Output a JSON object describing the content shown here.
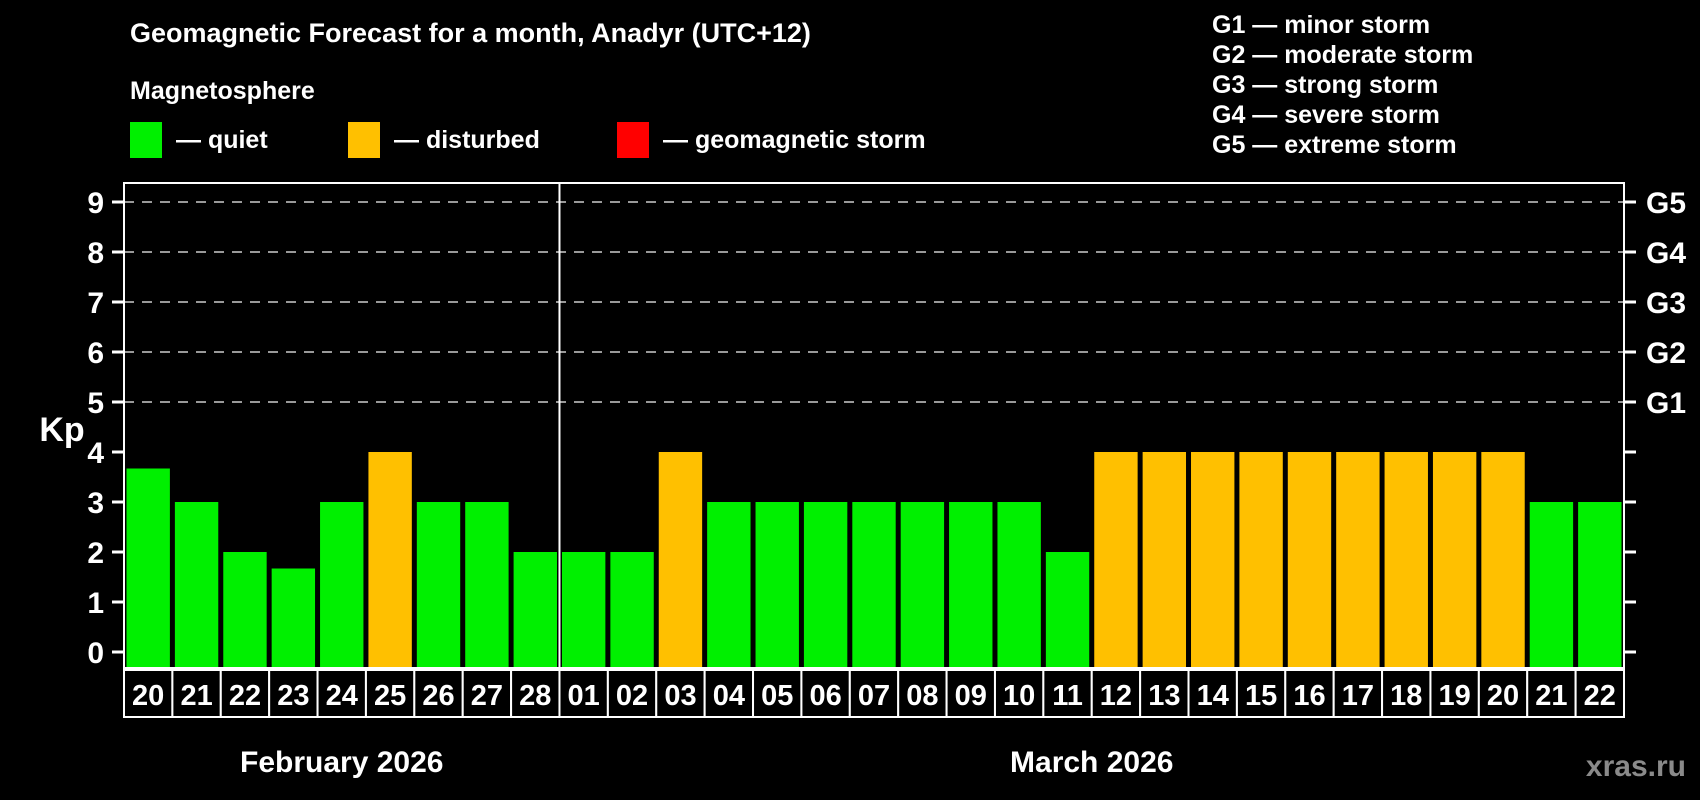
{
  "title": "Geomagnetic Forecast for a month, Anadyr (UTC+12)",
  "subtitle": "Magnetosphere",
  "magnetosphere_legend": {
    "items": [
      {
        "name": "quiet",
        "label": "— quiet",
        "color": "#00f000"
      },
      {
        "name": "disturbed",
        "label": "— disturbed",
        "color": "#ffc000"
      },
      {
        "name": "geomagnetic-storm",
        "label": "— geomagnetic storm",
        "color": "#ff0000"
      }
    ]
  },
  "storm_scale_legend": {
    "items": [
      "G1 — minor storm",
      "G2 — moderate storm",
      "G3 — strong storm",
      "G4 — severe storm",
      "G5 — extreme storm"
    ]
  },
  "watermark": "xras.ru",
  "chart_data": {
    "type": "bar",
    "ylabel": "Kp",
    "ylim": [
      0,
      9.7
    ],
    "yticks": [
      0,
      1,
      2,
      3,
      4,
      5,
      6,
      7,
      8,
      9
    ],
    "gridlines": {
      "values": [
        5,
        6,
        7,
        8,
        9
      ],
      "style": "dashed",
      "color": "#999999"
    },
    "right_axis_labels": [
      {
        "value": 5,
        "label": "G1"
      },
      {
        "value": 6,
        "label": "G2"
      },
      {
        "value": 7,
        "label": "G3"
      },
      {
        "value": 8,
        "label": "G4"
      },
      {
        "value": 9,
        "label": "G5"
      }
    ],
    "status_colors": {
      "quiet": "#00f000",
      "disturbed": "#ffc000",
      "geomagnetic-storm": "#ff0000"
    },
    "months": [
      {
        "label": "February 2026",
        "bars": [
          {
            "day": "20",
            "kp": 3.67,
            "status": "quiet"
          },
          {
            "day": "21",
            "kp": 3,
            "status": "quiet"
          },
          {
            "day": "22",
            "kp": 2,
            "status": "quiet"
          },
          {
            "day": "23",
            "kp": 1.67,
            "status": "quiet"
          },
          {
            "day": "24",
            "kp": 3,
            "status": "quiet"
          },
          {
            "day": "25",
            "kp": 4,
            "status": "disturbed"
          },
          {
            "day": "26",
            "kp": 3,
            "status": "quiet"
          },
          {
            "day": "27",
            "kp": 3,
            "status": "quiet"
          },
          {
            "day": "28",
            "kp": 2,
            "status": "quiet"
          }
        ]
      },
      {
        "label": "March 2026",
        "bars": [
          {
            "day": "01",
            "kp": 2,
            "status": "quiet"
          },
          {
            "day": "02",
            "kp": 2,
            "status": "quiet"
          },
          {
            "day": "03",
            "kp": 4,
            "status": "disturbed"
          },
          {
            "day": "04",
            "kp": 3,
            "status": "quiet"
          },
          {
            "day": "05",
            "kp": 3,
            "status": "quiet"
          },
          {
            "day": "06",
            "kp": 3,
            "status": "quiet"
          },
          {
            "day": "07",
            "kp": 3,
            "status": "quiet"
          },
          {
            "day": "08",
            "kp": 3,
            "status": "quiet"
          },
          {
            "day": "09",
            "kp": 3,
            "status": "quiet"
          },
          {
            "day": "10",
            "kp": 3,
            "status": "quiet"
          },
          {
            "day": "11",
            "kp": 2,
            "status": "quiet"
          },
          {
            "day": "12",
            "kp": 4,
            "status": "disturbed"
          },
          {
            "day": "13",
            "kp": 4,
            "status": "disturbed"
          },
          {
            "day": "14",
            "kp": 4,
            "status": "disturbed"
          },
          {
            "day": "15",
            "kp": 4,
            "status": "disturbed"
          },
          {
            "day": "16",
            "kp": 4,
            "status": "disturbed"
          },
          {
            "day": "17",
            "kp": 4,
            "status": "disturbed"
          },
          {
            "day": "18",
            "kp": 4,
            "status": "disturbed"
          },
          {
            "day": "19",
            "kp": 4,
            "status": "disturbed"
          },
          {
            "day": "20",
            "kp": 4,
            "status": "disturbed"
          },
          {
            "day": "21",
            "kp": 3,
            "status": "quiet"
          },
          {
            "day": "22",
            "kp": 3,
            "status": "quiet"
          }
        ]
      }
    ]
  }
}
